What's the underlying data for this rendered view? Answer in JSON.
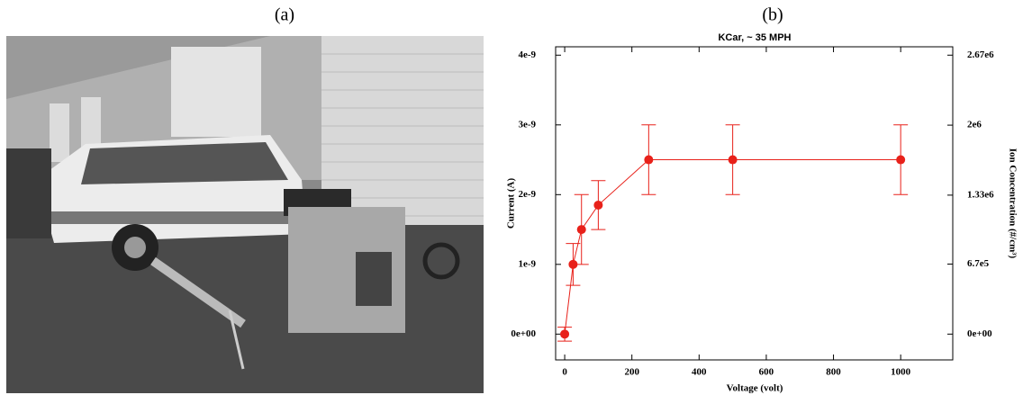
{
  "panels": {
    "a": "(a)",
    "b": "(b)"
  },
  "chart_data": {
    "type": "errorbar-line",
    "title": "KCar, ~ 35 MPH",
    "xlabel": "Voltage (volt)",
    "ylabel": "Current (A)",
    "y2label": "Ion Concentration (#/cm³)",
    "x": [
      0,
      25,
      50,
      100,
      250,
      500,
      1000
    ],
    "values": [
      0,
      1e-09,
      1.5e-09,
      1.85e-09,
      2.5e-09,
      2.5e-09,
      2.5e-09
    ],
    "errors": [
      1e-10,
      3e-10,
      5e-10,
      3.5e-10,
      5e-10,
      5e-10,
      5e-10
    ],
    "color": "#e8211a",
    "xlim": [
      -27,
      1155
    ],
    "xticks": [
      0,
      200,
      400,
      600,
      800,
      1000
    ],
    "ylim": [
      -3.7e-10,
      4.12e-09
    ],
    "yticks": [
      {
        "value": 0,
        "label": "0e+00"
      },
      {
        "value": 1e-09,
        "label": "1e-9"
      },
      {
        "value": 2e-09,
        "label": "2e-9"
      },
      {
        "value": 3e-09,
        "label": "3e-9"
      },
      {
        "value": 4e-09,
        "label": "4e-9"
      }
    ],
    "y2lim": [
      -247000,
      2750000
    ],
    "y2ticks": [
      {
        "value": 0,
        "label": "0e+00"
      },
      {
        "value": 670000,
        "label": "6.7e5"
      },
      {
        "value": 1330000,
        "label": "1.33e6"
      },
      {
        "value": 2000000,
        "label": "2e6"
      },
      {
        "value": 2670000,
        "label": "2.67e6"
      }
    ]
  }
}
